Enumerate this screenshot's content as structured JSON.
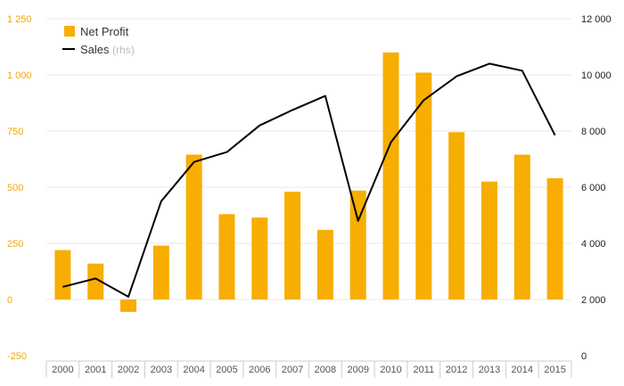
{
  "chart_data": {
    "type": "bar",
    "categories": [
      "2000",
      "2001",
      "2002",
      "2003",
      "2004",
      "2005",
      "2006",
      "2007",
      "2008",
      "2009",
      "2010",
      "2011",
      "2012",
      "2013",
      "2014",
      "2015"
    ],
    "series": [
      {
        "name": "Net Profit",
        "type": "bar",
        "axis": "left",
        "color": "#f7ae00",
        "values": [
          220,
          160,
          -55,
          240,
          645,
          380,
          365,
          480,
          310,
          485,
          1100,
          1010,
          745,
          525,
          645,
          540
        ]
      },
      {
        "name": "Sales",
        "type": "line",
        "axis": "right",
        "color": "#000000",
        "values": [
          2450,
          2750,
          2100,
          5500,
          6900,
          7250,
          8200,
          8750,
          9250,
          4800,
          7600,
          9100,
          9950,
          10400,
          10150,
          7850
        ]
      }
    ],
    "left_axis": {
      "ylim": [
        -250,
        1250
      ],
      "ticks": [
        -250,
        0,
        250,
        500,
        750,
        1000,
        1250
      ],
      "tick_labels": [
        "-250",
        "0",
        "250",
        "500",
        "750",
        "1 000",
        "1 250"
      ]
    },
    "right_axis": {
      "ylim": [
        0,
        12000
      ],
      "ticks": [
        0,
        2000,
        4000,
        6000,
        8000,
        10000,
        12000
      ],
      "tick_labels": [
        "0",
        "2 000",
        "4 000",
        "6 000",
        "8 000",
        "10 000",
        "12 000"
      ]
    },
    "legend": {
      "placement": "top-left",
      "entries": [
        {
          "label": "Net Profit",
          "suffix": ""
        },
        {
          "label": "Sales",
          "suffix": "(rhs)"
        }
      ]
    },
    "grid": true
  },
  "colors": {
    "bar": "#f7ae00",
    "line": "#000000",
    "left_ticks": "#f2a900",
    "grid": "#e8e8e8"
  }
}
